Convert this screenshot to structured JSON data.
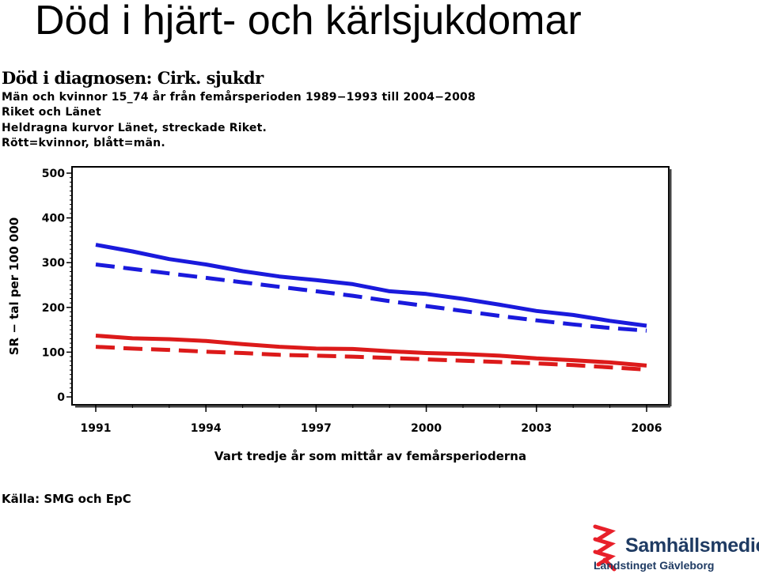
{
  "page": {
    "title": "Död i hjärt- och kärlsjukdomar",
    "subtitle": "Död i diagnosen: Cirk. sjukdr",
    "info_lines": [
      "Män och kvinnor 15_74 år från femårsperioden 1989−1993 till 2004−2008",
      "Riket och Länet",
      "Heldragna kurvor Länet, streckade Riket.",
      "Rött=kvinnor, blått=män."
    ],
    "source": "Källa: SMG och EpC",
    "logo": {
      "name": "Samhällsmedicin",
      "org": "Landstinget Gävleborg",
      "brand_color": "#1f3b63",
      "mark_color": "#e8202a"
    }
  },
  "chart_data": {
    "type": "line",
    "x": [
      1991,
      1992,
      1993,
      1994,
      1995,
      1996,
      1997,
      1998,
      1999,
      2000,
      2001,
      2002,
      2003,
      2004,
      2005,
      2006
    ],
    "xticks": [
      1991,
      1994,
      1997,
      2000,
      2003,
      2006
    ],
    "xtick_labels": [
      "1991",
      "1994",
      "1997",
      "2000",
      "2003",
      "2006"
    ],
    "xlim": [
      1991,
      2006
    ],
    "yticks": [
      0,
      100,
      200,
      300,
      400,
      500
    ],
    "ytick_labels": [
      "0",
      "100",
      "200",
      "300",
      "400",
      "500"
    ],
    "ylim": [
      0,
      500
    ],
    "xlabel": "Vart tredje år som mittår av femårsperioderna",
    "ylabel": "SR − tal per 100 000",
    "grid": false,
    "series": [
      {
        "color": "#1a1adc",
        "dashed": false,
        "values": [
          340,
          325,
          308,
          296,
          281,
          269,
          261,
          252,
          236,
          230,
          219,
          206,
          192,
          183,
          170,
          159
        ]
      },
      {
        "color": "#1a1adc",
        "dashed": true,
        "values": [
          296,
          286,
          276,
          266,
          256,
          246,
          236,
          226,
          214,
          203,
          192,
          181,
          171,
          162,
          154,
          148
        ]
      },
      {
        "color": "#dc1a1a",
        "dashed": false,
        "values": [
          137,
          131,
          129,
          125,
          118,
          112,
          108,
          107,
          102,
          98,
          96,
          92,
          86,
          82,
          77,
          70
        ]
      },
      {
        "color": "#dc1a1a",
        "dashed": true,
        "values": [
          112,
          108,
          105,
          101,
          98,
          94,
          92,
          90,
          87,
          84,
          81,
          78,
          75,
          71,
          66,
          61
        ]
      }
    ]
  }
}
